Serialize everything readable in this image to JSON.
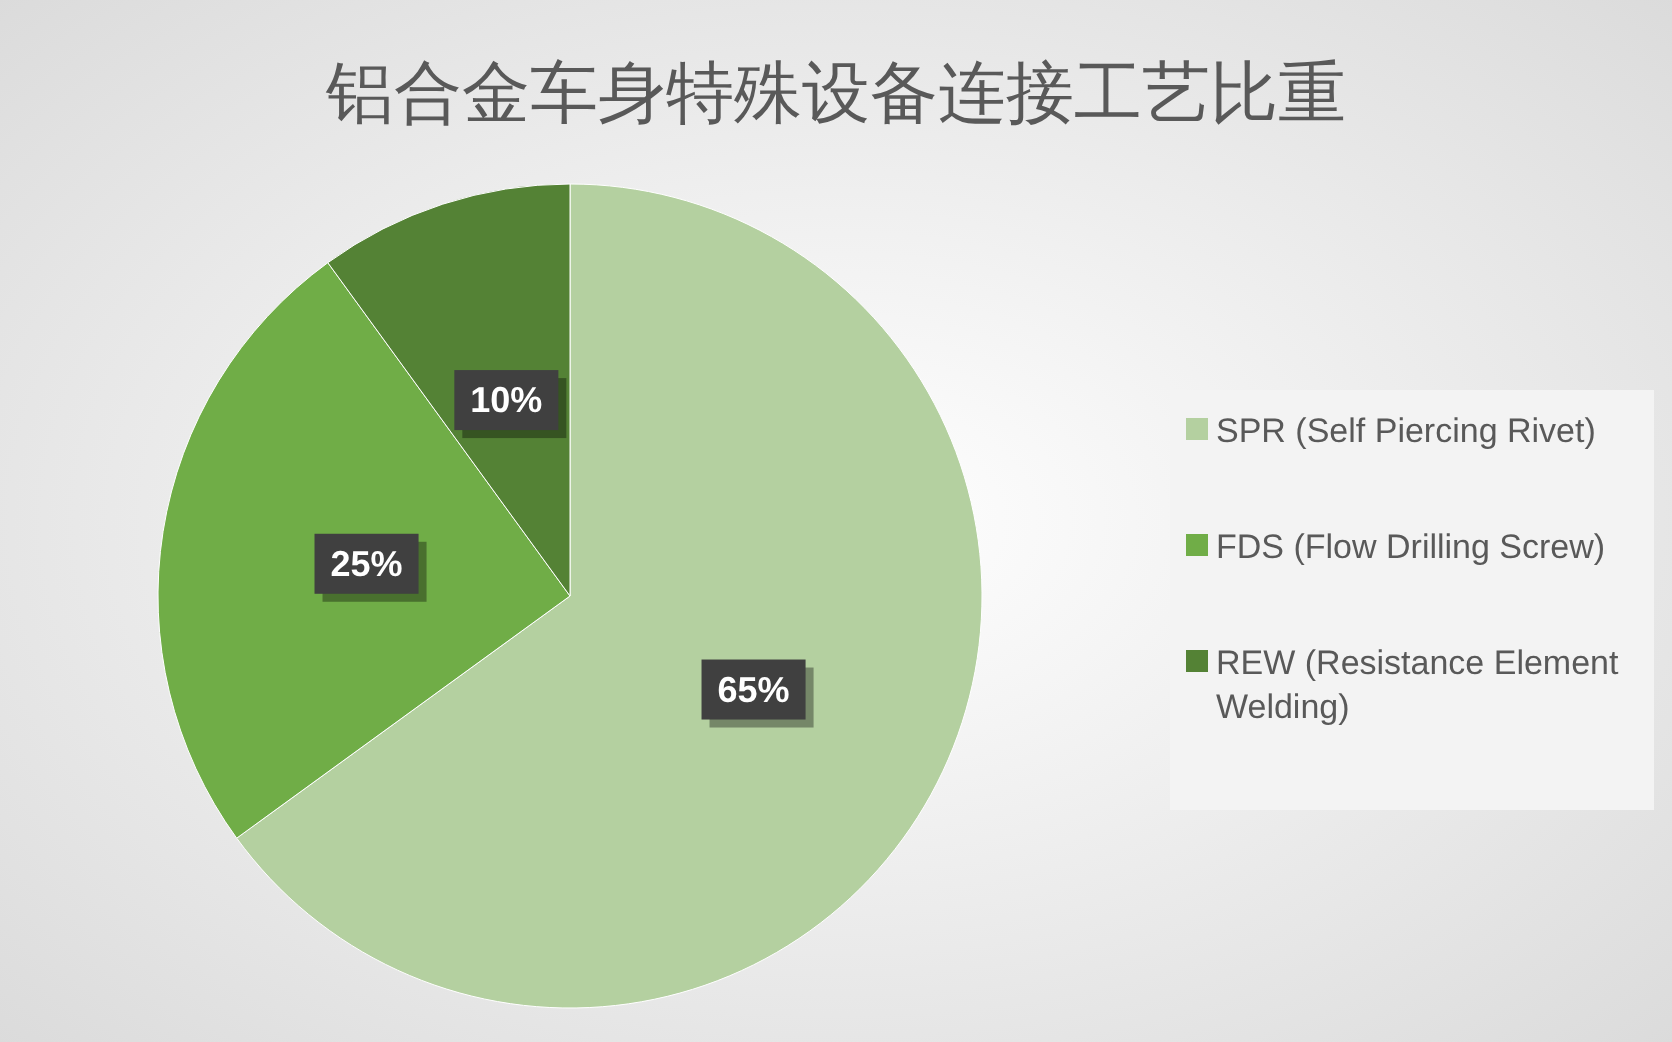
{
  "chart_data": {
    "type": "pie",
    "title": "铝合金车身特殊设备连接工艺比重",
    "categories": [
      "SPR (Self Piercing Rivet)",
      "FDS (Flow Drilling Screw)",
      "REW (Resistance Element Welding)"
    ],
    "values": [
      65,
      25,
      10
    ],
    "colors": [
      "#b4d0a0",
      "#70ad47",
      "#548235"
    ],
    "value_labels": [
      "65%",
      "25%",
      "10%"
    ],
    "legend": "right"
  }
}
